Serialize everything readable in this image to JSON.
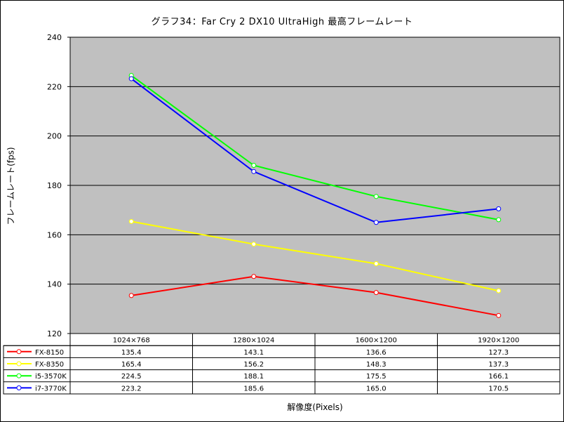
{
  "chart_data": {
    "type": "line",
    "title": "グラフ34：Far Cry 2 DX10 UltraHigh 最高フレームレート",
    "ylabel": "フレームレート(fps)",
    "xlabel": "解像度(Pixels)",
    "categories": [
      "1024×768",
      "1280×1024",
      "1600×1200",
      "1920×1200"
    ],
    "ylim": [
      120,
      240
    ],
    "yticks": [
      "120",
      "140",
      "160",
      "180",
      "200",
      "220",
      "240"
    ],
    "grid": true,
    "plot_background": "#c0c0c0",
    "series": [
      {
        "name": "FX-8150",
        "color": "#ff0000",
        "values": [
          135.4,
          143.1,
          136.6,
          127.3
        ],
        "labels": [
          "135.4",
          "143.1",
          "136.6",
          "127.3"
        ]
      },
      {
        "name": "FX-8350",
        "color": "#ffff00",
        "values": [
          165.4,
          156.2,
          148.3,
          137.3
        ],
        "labels": [
          "165.4",
          "156.2",
          "148.3",
          "137.3"
        ]
      },
      {
        "name": "i5-3570K",
        "color": "#00ff00",
        "values": [
          224.5,
          188.1,
          175.5,
          166.1
        ],
        "labels": [
          "224.5",
          "188.1",
          "175.5",
          "166.1"
        ]
      },
      {
        "name": "i7-3770K",
        "color": "#0000ff",
        "values": [
          223.2,
          185.6,
          165.0,
          170.5
        ],
        "labels": [
          "223.2",
          "185.6",
          "165.0",
          "170.5"
        ]
      }
    ]
  }
}
